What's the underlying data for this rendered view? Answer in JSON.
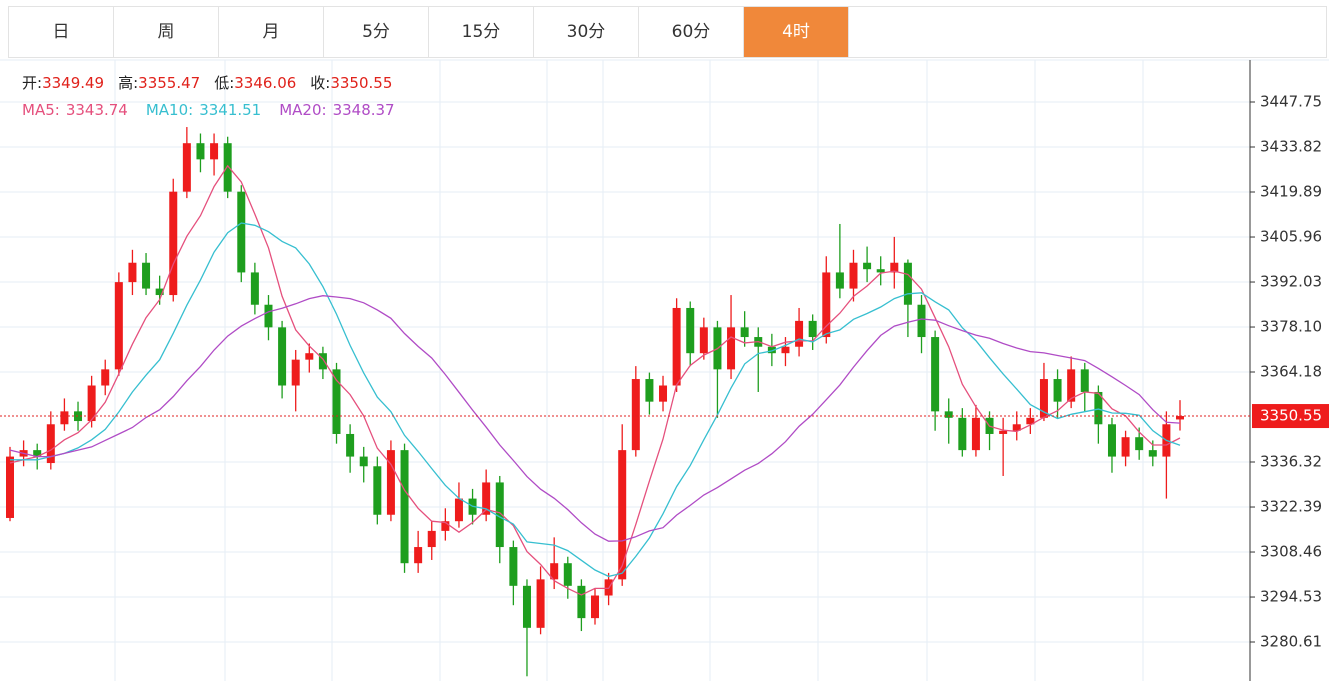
{
  "tabs": [
    "日",
    "周",
    "月",
    "5分",
    "15分",
    "30分",
    "60分",
    "4时"
  ],
  "active_tab": 7,
  "chart_data": {
    "type": "candlestick",
    "info_labels": [
      "开:",
      "高:",
      "低:",
      "收:"
    ],
    "up_color": "#ee1c1c",
    "down_color": "#1e9e1e",
    "ohlc": [
      [
        3319,
        3341,
        3318,
        3338
      ],
      [
        3338,
        3343,
        3335,
        3340
      ],
      [
        3340,
        3342,
        3334,
        3338
      ],
      [
        3336,
        3352,
        3334,
        3348
      ],
      [
        3348,
        3356,
        3346,
        3352
      ],
      [
        3352,
        3355,
        3346,
        3349
      ],
      [
        3349,
        3363,
        3347,
        3360
      ],
      [
        3360,
        3368,
        3357,
        3365
      ],
      [
        3365,
        3395,
        3363,
        3392
      ],
      [
        3392,
        3402,
        3388,
        3398
      ],
      [
        3398,
        3401,
        3388,
        3390
      ],
      [
        3390,
        3394,
        3385,
        3388
      ],
      [
        3388,
        3424,
        3386,
        3420
      ],
      [
        3420,
        3440,
        3418,
        3435
      ],
      [
        3435,
        3438,
        3426,
        3430
      ],
      [
        3430,
        3438,
        3425,
        3435
      ],
      [
        3435,
        3437,
        3418,
        3420
      ],
      [
        3420,
        3422,
        3392,
        3395
      ],
      [
        3395,
        3398,
        3382,
        3385
      ],
      [
        3385,
        3388,
        3374,
        3378
      ],
      [
        3378,
        3380,
        3356,
        3360
      ],
      [
        3360,
        3371,
        3352,
        3368
      ],
      [
        3368,
        3373,
        3364,
        3370
      ],
      [
        3370,
        3372,
        3362,
        3365
      ],
      [
        3365,
        3367,
        3342,
        3345
      ],
      [
        3345,
        3348,
        3333,
        3338
      ],
      [
        3338,
        3341,
        3330,
        3335
      ],
      [
        3335,
        3338,
        3317,
        3320
      ],
      [
        3320,
        3343,
        3318,
        3340
      ],
      [
        3340,
        3342,
        3302,
        3305
      ],
      [
        3305,
        3315,
        3302,
        3310
      ],
      [
        3310,
        3318,
        3306,
        3315
      ],
      [
        3315,
        3322,
        3312,
        3318
      ],
      [
        3318,
        3330,
        3316,
        3325
      ],
      [
        3325,
        3328,
        3317,
        3320
      ],
      [
        3320,
        3334,
        3318,
        3330
      ],
      [
        3330,
        3332,
        3305,
        3310
      ],
      [
        3310,
        3312,
        3292,
        3298
      ],
      [
        3298,
        3300,
        3270,
        3285
      ],
      [
        3285,
        3304,
        3283,
        3300
      ],
      [
        3300,
        3313,
        3297,
        3305
      ],
      [
        3305,
        3307,
        3294,
        3298
      ],
      [
        3298,
        3300,
        3284,
        3288
      ],
      [
        3288,
        3297,
        3286,
        3295
      ],
      [
        3295,
        3302,
        3292,
        3300
      ],
      [
        3300,
        3348,
        3298,
        3340
      ],
      [
        3340,
        3366,
        3338,
        3362
      ],
      [
        3362,
        3364,
        3351,
        3355
      ],
      [
        3355,
        3363,
        3352,
        3360
      ],
      [
        3360,
        3387,
        3358,
        3384
      ],
      [
        3384,
        3386,
        3366,
        3370
      ],
      [
        3370,
        3381,
        3368,
        3378
      ],
      [
        3378,
        3380,
        3350,
        3365
      ],
      [
        3365,
        3388,
        3362,
        3378
      ],
      [
        3378,
        3383,
        3372,
        3375
      ],
      [
        3375,
        3378,
        3358,
        3372
      ],
      [
        3372,
        3376,
        3366,
        3370
      ],
      [
        3370,
        3375,
        3366,
        3372
      ],
      [
        3372,
        3384,
        3369,
        3380
      ],
      [
        3380,
        3382,
        3371,
        3375
      ],
      [
        3375,
        3400,
        3373,
        3395
      ],
      [
        3395,
        3410,
        3387,
        3390
      ],
      [
        3390,
        3402,
        3386,
        3398
      ],
      [
        3398,
        3403,
        3392,
        3396
      ],
      [
        3396,
        3400,
        3391,
        3395
      ],
      [
        3395,
        3406,
        3390,
        3398
      ],
      [
        3398,
        3399,
        3375,
        3385
      ],
      [
        3385,
        3388,
        3370,
        3375
      ],
      [
        3375,
        3377,
        3346,
        3352
      ],
      [
        3352,
        3356,
        3342,
        3350
      ],
      [
        3350,
        3353,
        3338,
        3340
      ],
      [
        3340,
        3354,
        3338,
        3350
      ],
      [
        3350,
        3352,
        3340,
        3345
      ],
      [
        3345,
        3350,
        3332,
        3346
      ],
      [
        3346,
        3352,
        3343,
        3348
      ],
      [
        3348,
        3353,
        3345,
        3350
      ],
      [
        3350,
        3367,
        3349,
        3362
      ],
      [
        3362,
        3365,
        3350,
        3355
      ],
      [
        3355,
        3369,
        3353,
        3365
      ],
      [
        3365,
        3367,
        3352,
        3358
      ],
      [
        3358,
        3360,
        3342,
        3348
      ],
      [
        3348,
        3350,
        3333,
        3338
      ],
      [
        3338,
        3346,
        3335,
        3344
      ],
      [
        3344,
        3347,
        3337,
        3340
      ],
      [
        3340,
        3343,
        3335,
        3338
      ],
      [
        3338,
        3352,
        3325,
        3348
      ],
      [
        3349.49,
        3355.47,
        3346.06,
        3350.55
      ]
    ],
    "series": [
      {
        "name": "MA5:",
        "color": "#e5507d",
        "values": [
          3336,
          3337,
          3338,
          3340,
          3343.2,
          3345.4,
          3349.4,
          3354.8,
          3363.6,
          3372.8,
          3381,
          3386.6,
          3397.6,
          3406.2,
          3412.6,
          3421.6,
          3428,
          3423,
          3413,
          3402.6,
          3387.6,
          3377.2,
          3372.2,
          3368.2,
          3361.6,
          3357.2,
          3350.6,
          3340.6,
          3335.6,
          3327.6,
          3322,
          3318,
          3317.6,
          3314.6,
          3317.6,
          3321.6,
          3320.6,
          3316.6,
          3308.6,
          3304.6,
          3299.6,
          3297.2,
          3295.2,
          3297.2,
          3297.2,
          3304.2,
          3317,
          3330.4,
          3343.4,
          3360.2,
          3366.2,
          3369.4,
          3371.4,
          3375,
          3373.2,
          3373.6,
          3372,
          3373.4,
          3373.8,
          3373.8,
          3378.4,
          3382.4,
          3387.6,
          3390.8,
          3394.8,
          3395.4,
          3394.4,
          3389.8,
          3381,
          3372,
          3360.4,
          3353.4,
          3347.4,
          3346.2,
          3345.8,
          3347.8,
          3350.2,
          3352.2,
          3356,
          3358,
          3357.6,
          3352.8,
          3350.6,
          3345.6,
          3341.6,
          3341.6,
          3343.74
        ]
      },
      {
        "name": "MA10:",
        "color": "#37bfd0",
        "values": [
          3337,
          3337,
          3337,
          3338,
          3339,
          3340.7,
          3343.2,
          3346.4,
          3351.8,
          3358,
          3363.2,
          3368,
          3376.2,
          3384.9,
          3392.7,
          3401.3,
          3407.3,
          3410.3,
          3409.6,
          3407.6,
          3404.6,
          3402.6,
          3397.6,
          3390.6,
          3382.1,
          3372.4,
          3363.9,
          3356.4,
          3351.9,
          3344.6,
          3339.6,
          3334.3,
          3329.1,
          3325.1,
          3322.6,
          3321.8,
          3319.3,
          3317.1,
          3311.6,
          3311.1,
          3310.6,
          3308.9,
          3305.9,
          3302.9,
          3300.9,
          3301.9,
          3307.1,
          3312.8,
          3320.3,
          3328.7,
          3335.2,
          3343.2,
          3350.9,
          3359.2,
          3366.7,
          3369.9,
          3370.7,
          3372.4,
          3374.4,
          3373.5,
          3376,
          3377.2,
          3380.5,
          3382.3,
          3384.3,
          3386.9,
          3388.4,
          3388.7,
          3385.9,
          3383.4,
          3377.9,
          3373.9,
          3368.6,
          3363.6,
          3358.9,
          3354.1,
          3351.8,
          3349.8,
          3351.1,
          3351.9,
          3352.7,
          3351.5,
          3351.4,
          3350.8,
          3346,
          3343,
          3341.51
        ]
      },
      {
        "name": "MA20:",
        "color": "#b04cc6",
        "values": [
          3340,
          3339,
          3338,
          3338,
          3339,
          3340,
          3341,
          3343,
          3345,
          3347,
          3350.1,
          3352.5,
          3356.6,
          3361.5,
          3365.9,
          3371,
          3375.3,
          3378.4,
          3380.7,
          3382.8,
          3383.9,
          3385.3,
          3386.9,
          3387.8,
          3387.4,
          3386.9,
          3385.6,
          3383.4,
          3380.8,
          3376.1,
          3372.1,
          3368.5,
          3363.4,
          3357.9,
          3352.4,
          3347.1,
          3341.6,
          3336.8,
          3331.8,
          3327.9,
          3325.1,
          3321.6,
          3317.5,
          3314,
          3311.8,
          3311.9,
          3313.2,
          3315,
          3316,
          3319.9,
          3322.9,
          3326.1,
          3328.4,
          3331.1,
          3333.8,
          3335.9,
          3338.9,
          3342.6,
          3347.4,
          3351.1,
          3355.6,
          3360.2,
          3365.7,
          3370.8,
          3375.5,
          3378.4,
          3379.6,
          3380.6,
          3380.2,
          3378.5,
          3377,
          3375.6,
          3374.6,
          3373,
          3371.6,
          3370.5,
          3370.1,
          3369.3,
          3368.5,
          3367.7,
          3365.3,
          3362.7,
          3360,
          3357.2,
          3352.5,
          3348.6,
          3348.37
        ]
      }
    ],
    "ylim": [
      3268.54,
      3460.75
    ],
    "yticks": [
      3447.75,
      3433.82,
      3419.89,
      3405.96,
      3392.03,
      {
        "value": 3378.1,
        "label": "3378.10"
      },
      3364.18,
      3336.32,
      3322.39,
      3308.46,
      3294.53,
      3280.61
    ],
    "grid": true
  }
}
